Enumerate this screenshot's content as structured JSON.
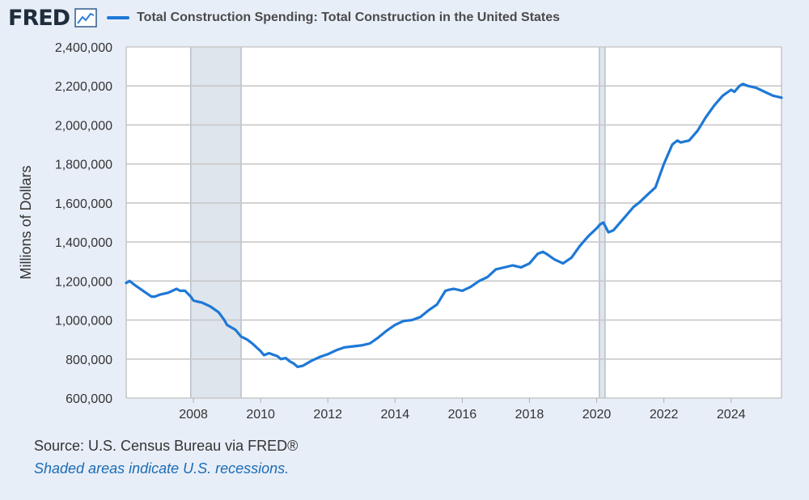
{
  "header": {
    "logo_text": "FRED",
    "logo_icon": "line-chart-icon",
    "series_label": "Total Construction Spending: Total Construction in the United States"
  },
  "colors": {
    "series": "#1e78d6",
    "recession": "#dfe5ec",
    "background": "#e8eef8",
    "note": "#1a6cb5"
  },
  "footer": {
    "source": "Source: U.S. Census Bureau via FRED®",
    "note": "Shaded areas indicate U.S. recessions."
  },
  "chart_data": {
    "type": "line",
    "title": "Total Construction Spending: Total Construction in the United States",
    "xlabel": "",
    "ylabel": "Millions of Dollars",
    "xlim": [
      2006.0,
      2025.5
    ],
    "ylim": [
      600000,
      2400000
    ],
    "x_ticks": [
      2008,
      2010,
      2012,
      2014,
      2016,
      2018,
      2020,
      2022,
      2024
    ],
    "x_tick_labels": [
      "2008",
      "2010",
      "2012",
      "2014",
      "2016",
      "2018",
      "2020",
      "2022",
      "2024"
    ],
    "y_ticks": [
      600000,
      800000,
      1000000,
      1200000,
      1400000,
      1600000,
      1800000,
      2000000,
      2200000,
      2400000
    ],
    "y_tick_labels": [
      "600,000",
      "800,000",
      "1,000,000",
      "1,200,000",
      "1,400,000",
      "1,600,000",
      "1,800,000",
      "2,000,000",
      "2,200,000",
      "2,400,000"
    ],
    "grid": true,
    "legend": "top-left",
    "recessions": [
      [
        2007.92,
        2009.42
      ],
      [
        2020.08,
        2020.25
      ]
    ],
    "series": [
      {
        "name": "Total Construction Spending: Total Construction in the United States",
        "x": [
          2006.0,
          2006.1,
          2006.25,
          2006.5,
          2006.75,
          2006.85,
          2007.0,
          2007.25,
          2007.5,
          2007.6,
          2007.75,
          2007.92,
          2008.0,
          2008.1,
          2008.25,
          2008.5,
          2008.75,
          2008.92,
          2009.0,
          2009.25,
          2009.42,
          2009.6,
          2009.75,
          2010.0,
          2010.1,
          2010.25,
          2010.5,
          2010.6,
          2010.75,
          2010.85,
          2011.0,
          2011.1,
          2011.25,
          2011.5,
          2011.75,
          2012.0,
          2012.25,
          2012.5,
          2012.75,
          2013.0,
          2013.25,
          2013.5,
          2013.75,
          2014.0,
          2014.25,
          2014.5,
          2014.75,
          2015.0,
          2015.25,
          2015.5,
          2015.6,
          2015.75,
          2016.0,
          2016.25,
          2016.5,
          2016.75,
          2017.0,
          2017.25,
          2017.5,
          2017.75,
          2018.0,
          2018.25,
          2018.4,
          2018.5,
          2018.75,
          2019.0,
          2019.25,
          2019.5,
          2019.75,
          2020.0,
          2020.1,
          2020.2,
          2020.35,
          2020.5,
          2020.75,
          2021.0,
          2021.1,
          2021.25,
          2021.5,
          2021.75,
          2022.0,
          2022.25,
          2022.4,
          2022.5,
          2022.75,
          2023.0,
          2023.25,
          2023.5,
          2023.75,
          2024.0,
          2024.1,
          2024.25,
          2024.35,
          2024.5,
          2024.75,
          2025.0,
          2025.25,
          2025.5
        ],
        "values": [
          1190000,
          1200000,
          1180000,
          1150000,
          1120000,
          1120000,
          1130000,
          1140000,
          1160000,
          1150000,
          1150000,
          1120000,
          1100000,
          1095000,
          1090000,
          1070000,
          1040000,
          1000000,
          975000,
          950000,
          915000,
          900000,
          880000,
          840000,
          820000,
          830000,
          815000,
          800000,
          805000,
          790000,
          775000,
          760000,
          765000,
          790000,
          810000,
          825000,
          845000,
          860000,
          865000,
          870000,
          880000,
          910000,
          945000,
          975000,
          995000,
          1000000,
          1015000,
          1050000,
          1080000,
          1150000,
          1155000,
          1160000,
          1150000,
          1170000,
          1200000,
          1220000,
          1260000,
          1270000,
          1280000,
          1270000,
          1290000,
          1340000,
          1350000,
          1340000,
          1310000,
          1290000,
          1320000,
          1380000,
          1430000,
          1470000,
          1490000,
          1500000,
          1450000,
          1460000,
          1510000,
          1560000,
          1580000,
          1600000,
          1640000,
          1680000,
          1800000,
          1900000,
          1920000,
          1910000,
          1920000,
          1970000,
          2040000,
          2100000,
          2150000,
          2180000,
          2170000,
          2200000,
          2210000,
          2200000,
          2190000,
          2170000,
          2150000,
          2140000
        ]
      }
    ]
  }
}
